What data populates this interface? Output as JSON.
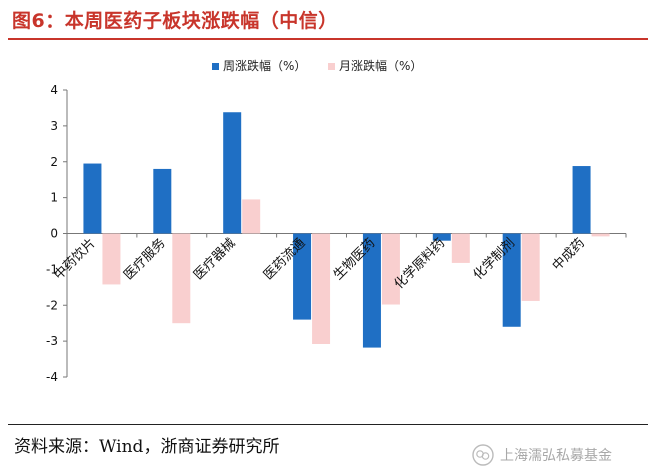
{
  "header": {
    "title": "图6：本周医药子板块涨跌幅（中信）"
  },
  "footer": {
    "source": "资料来源：Wind，浙商证券研究所",
    "watermark": "上海濡弘私募基金"
  },
  "colors": {
    "title": "#c8352b",
    "weekly": "#1f6fc4",
    "monthly": "#f9cfcf"
  },
  "chart_data": {
    "type": "bar",
    "categories": [
      "中药饮片",
      "医疗服务",
      "医疗器械",
      "医药流通",
      "生物医药",
      "化学原料药",
      "化学制剂",
      "中成药"
    ],
    "series": [
      {
        "name": "周涨跌幅（%）",
        "color": "#1f6fc4",
        "values": [
          1.95,
          1.8,
          3.38,
          -2.4,
          -3.18,
          -0.2,
          -2.6,
          1.88
        ]
      },
      {
        "name": "月涨跌幅（%）",
        "color": "#f9cfcf",
        "values": [
          -1.42,
          -2.5,
          0.95,
          -3.08,
          -1.98,
          -0.82,
          -1.88,
          -0.08
        ]
      }
    ],
    "ylim": [
      -4,
      4
    ],
    "yticks": [
      "4",
      "3",
      "2",
      "1",
      "0",
      "-1",
      "-2",
      "-3",
      "-4"
    ],
    "grid": false,
    "legend_position": "top-center"
  }
}
